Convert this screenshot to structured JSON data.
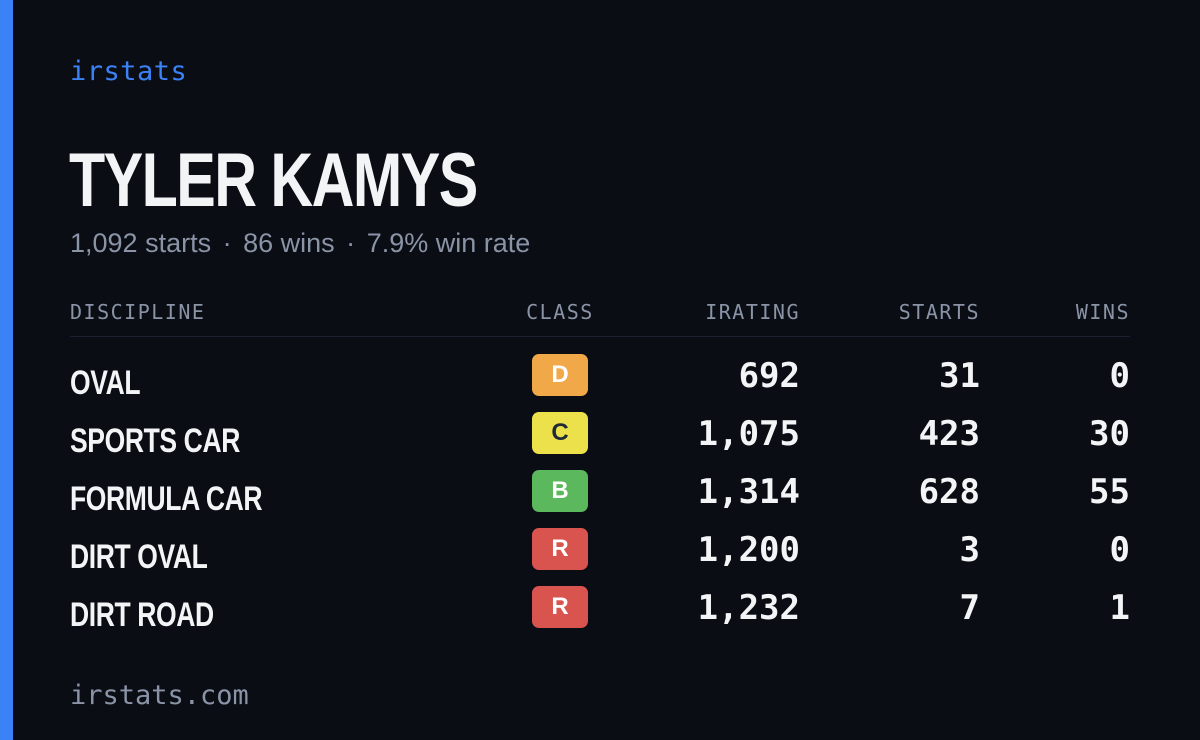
{
  "brand": "irstats",
  "driver": {
    "name": "TYLER KAMYS",
    "starts_text": "1,092 starts",
    "wins_text": "86 wins",
    "winrate_text": "7.9% win rate",
    "separator": "·"
  },
  "table": {
    "headers": {
      "discipline": "DISCIPLINE",
      "class": "CLASS",
      "irating": "IRATING",
      "starts": "STARTS",
      "wins": "WINS"
    },
    "rows": [
      {
        "discipline": "OVAL",
        "class": "D",
        "class_color": "#f0a848",
        "class_text_color": "#ffffff",
        "irating": "692",
        "starts": "31",
        "wins": "0"
      },
      {
        "discipline": "SPORTS CAR",
        "class": "C",
        "class_color": "#ece14a",
        "class_text_color": "#1f2937",
        "irating": "1,075",
        "starts": "423",
        "wins": "30"
      },
      {
        "discipline": "FORMULA CAR",
        "class": "B",
        "class_color": "#5cb85c",
        "class_text_color": "#ffffff",
        "irating": "1,314",
        "starts": "628",
        "wins": "55"
      },
      {
        "discipline": "DIRT OVAL",
        "class": "R",
        "class_color": "#d9534f",
        "class_text_color": "#ffffff",
        "irating": "1,200",
        "starts": "3",
        "wins": "0"
      },
      {
        "discipline": "DIRT ROAD",
        "class": "R",
        "class_color": "#d9534f",
        "class_text_color": "#ffffff",
        "irating": "1,232",
        "starts": "7",
        "wins": "1"
      }
    ]
  },
  "footer": "irstats.com",
  "colors": {
    "background": "#0a0d14",
    "accent": "#3b82f6",
    "muted_text": "#8a94a6",
    "primary_text": "#f3f4f6"
  }
}
